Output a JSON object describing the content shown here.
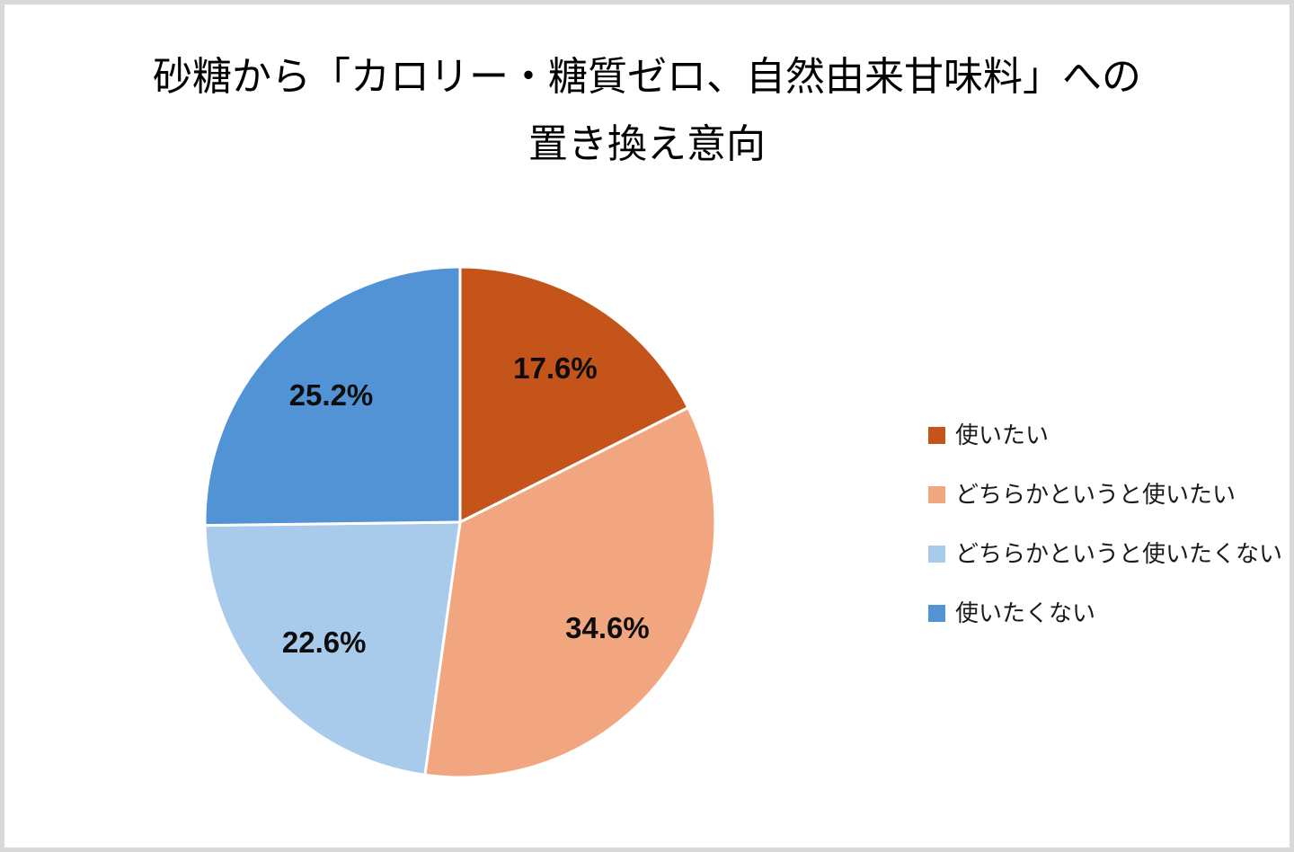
{
  "page": {
    "background_color": "#FFFFFF",
    "frame_border_color": "#D9D9D9",
    "text_color": "#000000"
  },
  "chart_data": {
    "type": "pie",
    "title": "砂糖から「カロリー・糖質ゼロ、自然由来甘味料」への置き換え意向",
    "title_lines": [
      "砂糖から「カロリー・糖質ゼロ、自然由来甘味料」への",
      "置き換え意向"
    ],
    "unit": "%",
    "start_angle_deg": 0,
    "direction": "clockwise",
    "legend_position": "right",
    "slice_border_color": "#FFFFFF",
    "label_color": "#0D0D0D",
    "slices": [
      {
        "name": "使いたい",
        "value": 17.6,
        "label": "17.6%",
        "color": "#C4541A"
      },
      {
        "name": "どちらかというと使いたい",
        "value": 34.6,
        "label": "34.6%",
        "color": "#F2A67F"
      },
      {
        "name": "どちらかというと使いたくない",
        "value": 22.6,
        "label": "22.6%",
        "color": "#A9CBEB"
      },
      {
        "name": "使いたくない",
        "value": 25.2,
        "label": "25.2%",
        "color": "#5193D5"
      }
    ]
  }
}
